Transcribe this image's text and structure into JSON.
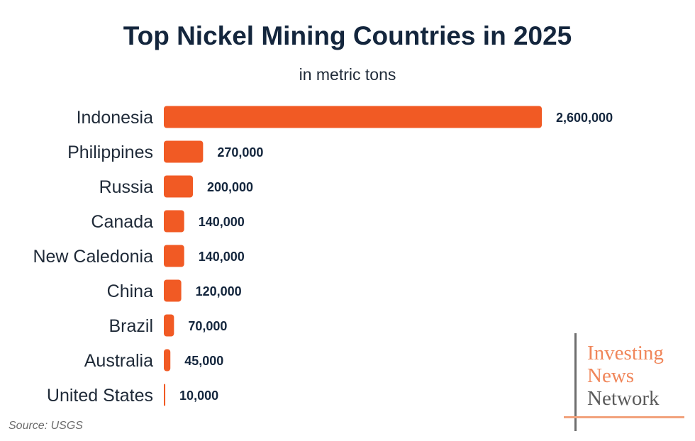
{
  "chart_data": {
    "type": "bar",
    "orientation": "horizontal",
    "title": "Top Nickel Mining Countries in 2025",
    "subtitle": "in metric tons",
    "categories": [
      "Indonesia",
      "Philippines",
      "Russia",
      "Canada",
      "New Caledonia",
      "China",
      "Brazil",
      "Australia",
      "United States"
    ],
    "values": [
      2600000,
      270000,
      200000,
      140000,
      140000,
      120000,
      70000,
      45000,
      10000
    ],
    "data_labels": [
      "2,600,000",
      "270,000",
      "200,000",
      "140,000",
      "140,000",
      "120,000",
      "70,000",
      "45,000",
      "10,000"
    ],
    "bar_color": "#f15a24",
    "grid": false,
    "legend": "none"
  },
  "source": "Source: USGS",
  "logo": {
    "line1": "Investing",
    "line2": "News",
    "line3": "Network"
  }
}
